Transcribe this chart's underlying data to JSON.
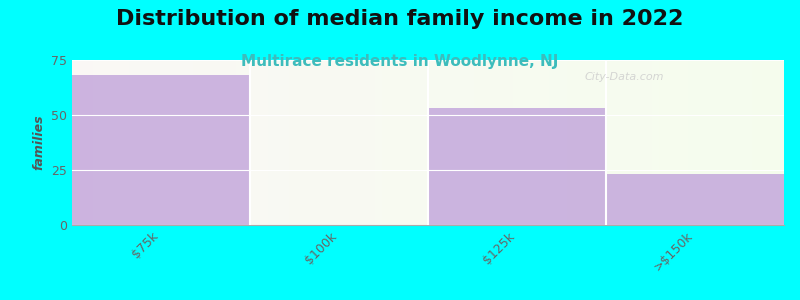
{
  "title": "Distribution of median family income in 2022",
  "subtitle": "Multirace residents in Woodlynne, NJ",
  "categories": [
    "$75k",
    "$100k",
    "$125k",
    ">$150k"
  ],
  "values": [
    68,
    0,
    53,
    23
  ],
  "bar_colors": [
    "#c4a8dc",
    "#dff0d0",
    "#c4a8dc",
    "#c4a8dc"
  ],
  "ylabel": "families",
  "ylim": [
    0,
    75
  ],
  "yticks": [
    0,
    25,
    50,
    75
  ],
  "background_color": "#00ffff",
  "title_fontsize": 16,
  "subtitle_fontsize": 11,
  "subtitle_color": "#3dbcbc",
  "watermark": "City-Data.com",
  "n_bars": 4
}
